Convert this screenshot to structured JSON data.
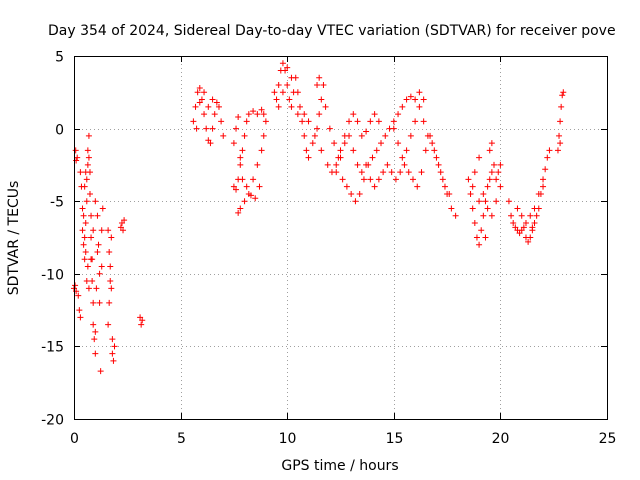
{
  "chart_data": {
    "type": "scatter",
    "title": "Day 354 of 2024, Sidereal Day-to-day VTEC variation (SDTVAR) for receiver pove",
    "xlabel": "GPS time / hours",
    "ylabel": "SDTVAR / TECUs",
    "xlim": [
      0,
      25
    ],
    "ylim": [
      -20,
      5
    ],
    "xticks": [
      "0",
      "5",
      "10",
      "15",
      "20",
      "25"
    ],
    "yticks": [
      "5",
      "0",
      "-5",
      "-10",
      "-15",
      "-20"
    ],
    "xtick_values": [
      0,
      5,
      10,
      15,
      20,
      25
    ],
    "ytick_values": [
      5,
      0,
      -5,
      -10,
      -15,
      -20
    ],
    "grid": true,
    "marker": "+",
    "color": "#ff0000",
    "series": [
      {
        "name": "SDTVAR",
        "points": [
          [
            0.0,
            -11.0
          ],
          [
            0.05,
            -10.8
          ],
          [
            0.1,
            -11.2
          ],
          [
            0.08,
            -1.5
          ],
          [
            0.1,
            -2.2
          ],
          [
            0.15,
            -2.0
          ],
          [
            0.2,
            -11.5
          ],
          [
            0.25,
            -12.5
          ],
          [
            0.3,
            -13.0
          ],
          [
            0.3,
            -3.0
          ],
          [
            0.35,
            -4.0
          ],
          [
            0.4,
            -5.5
          ],
          [
            0.4,
            -7.0
          ],
          [
            0.45,
            -8.0
          ],
          [
            0.5,
            -9.0
          ],
          [
            0.5,
            -7.5
          ],
          [
            0.55,
            -6.5
          ],
          [
            0.6,
            -5.0
          ],
          [
            0.6,
            -3.5
          ],
          [
            0.65,
            -2.5
          ],
          [
            0.65,
            -1.5
          ],
          [
            0.7,
            -0.5
          ],
          [
            0.7,
            -2.0
          ],
          [
            0.75,
            -3.0
          ],
          [
            0.75,
            -4.5
          ],
          [
            0.8,
            -6.0
          ],
          [
            0.8,
            -7.5
          ],
          [
            0.85,
            -9.0
          ],
          [
            0.85,
            -10.5
          ],
          [
            0.9,
            -12.0
          ],
          [
            0.9,
            -13.5
          ],
          [
            0.95,
            -14.5
          ],
          [
            1.0,
            -15.5
          ],
          [
            1.0,
            -14.0
          ],
          [
            1.05,
            -11.0
          ],
          [
            1.1,
            -8.5
          ],
          [
            1.1,
            -6.0
          ],
          [
            1.15,
            -8.0
          ],
          [
            1.2,
            -10.0
          ],
          [
            1.2,
            -12.0
          ],
          [
            1.25,
            -16.7
          ],
          [
            1.3,
            -9.5
          ],
          [
            1.3,
            -7.0
          ],
          [
            1.35,
            -5.5
          ],
          [
            0.5,
            -4.0
          ],
          [
            0.55,
            -3.0
          ],
          [
            0.45,
            -6.0
          ],
          [
            0.55,
            -8.5
          ],
          [
            0.6,
            -10.5
          ],
          [
            0.65,
            -9.5
          ],
          [
            0.7,
            -11.0
          ],
          [
            0.8,
            -9.0
          ],
          [
            0.9,
            -7.0
          ],
          [
            1.0,
            -5.0
          ],
          [
            1.6,
            -7.0
          ],
          [
            1.65,
            -8.5
          ],
          [
            1.7,
            -9.5
          ],
          [
            1.7,
            -10.5
          ],
          [
            1.75,
            -7.5
          ],
          [
            1.8,
            -14.5
          ],
          [
            1.8,
            -15.5
          ],
          [
            1.85,
            -16.0
          ],
          [
            1.9,
            -15.0
          ],
          [
            1.6,
            -13.5
          ],
          [
            1.65,
            -12.0
          ],
          [
            1.75,
            -11.0
          ],
          [
            2.2,
            -6.8
          ],
          [
            2.25,
            -6.5
          ],
          [
            2.3,
            -7.0
          ],
          [
            2.35,
            -6.3
          ],
          [
            3.1,
            -13.0
          ],
          [
            3.15,
            -13.5
          ],
          [
            3.2,
            -13.2
          ],
          [
            5.6,
            0.5
          ],
          [
            5.7,
            1.5
          ],
          [
            5.8,
            2.5
          ],
          [
            5.9,
            2.8
          ],
          [
            6.0,
            2.0
          ],
          [
            6.1,
            1.0
          ],
          [
            6.2,
            0.0
          ],
          [
            6.3,
            -0.8
          ],
          [
            6.4,
            -1.0
          ],
          [
            6.5,
            0.0
          ],
          [
            6.6,
            1.0
          ],
          [
            6.7,
            1.8
          ],
          [
            6.8,
            1.5
          ],
          [
            6.9,
            0.5
          ],
          [
            7.0,
            -0.5
          ],
          [
            6.5,
            2.0
          ],
          [
            6.3,
            1.5
          ],
          [
            6.1,
            2.5
          ],
          [
            5.9,
            1.8
          ],
          [
            5.75,
            0.0
          ],
          [
            7.5,
            -4.0
          ],
          [
            7.6,
            -4.2
          ],
          [
            7.7,
            -3.5
          ],
          [
            7.8,
            -2.5
          ],
          [
            7.9,
            -1.5
          ],
          [
            8.0,
            -0.5
          ],
          [
            8.1,
            0.5
          ],
          [
            8.2,
            1.0
          ],
          [
            8.4,
            1.2
          ],
          [
            8.6,
            1.0
          ],
          [
            8.8,
            1.3
          ],
          [
            8.9,
            1.0
          ],
          [
            7.5,
            -1.0
          ],
          [
            7.6,
            0.0
          ],
          [
            7.7,
            0.8
          ],
          [
            7.8,
            -2.0
          ],
          [
            7.9,
            -3.5
          ],
          [
            8.1,
            -4.0
          ],
          [
            7.7,
            -5.8
          ],
          [
            7.8,
            -5.5
          ],
          [
            8.0,
            -5.0
          ],
          [
            8.2,
            -4.5
          ],
          [
            8.4,
            -3.5
          ],
          [
            8.6,
            -2.5
          ],
          [
            8.8,
            -1.5
          ],
          [
            8.9,
            -0.5
          ],
          [
            9.0,
            0.5
          ],
          [
            8.5,
            -4.8
          ],
          [
            8.7,
            -4.0
          ],
          [
            8.3,
            -4.6
          ],
          [
            9.5,
            2.0
          ],
          [
            9.6,
            3.0
          ],
          [
            9.7,
            4.0
          ],
          [
            9.8,
            4.5
          ],
          [
            9.9,
            4.0
          ],
          [
            10.0,
            3.0
          ],
          [
            10.1,
            2.0
          ],
          [
            10.2,
            1.5
          ],
          [
            10.3,
            2.5
          ],
          [
            10.4,
            3.5
          ],
          [
            10.5,
            2.5
          ],
          [
            10.6,
            1.5
          ],
          [
            10.7,
            0.5
          ],
          [
            10.8,
            -0.5
          ],
          [
            10.9,
            -1.5
          ],
          [
            11.0,
            -2.0
          ],
          [
            11.2,
            -1.0
          ],
          [
            11.4,
            0.0
          ],
          [
            11.5,
            1.0
          ],
          [
            11.6,
            2.0
          ],
          [
            11.7,
            3.0
          ],
          [
            11.5,
            3.5
          ],
          [
            11.4,
            3.0
          ],
          [
            11.8,
            1.5
          ],
          [
            9.6,
            1.5
          ],
          [
            9.8,
            2.5
          ],
          [
            10.0,
            4.2
          ],
          [
            10.2,
            3.5
          ],
          [
            9.4,
            2.5
          ],
          [
            10.5,
            1.0
          ],
          [
            10.8,
            1.0
          ],
          [
            11.0,
            0.5
          ],
          [
            11.3,
            -0.5
          ],
          [
            11.6,
            -1.5
          ],
          [
            11.9,
            -2.5
          ],
          [
            12.1,
            -3.0
          ],
          [
            12.3,
            -2.5
          ],
          [
            12.5,
            -1.5
          ],
          [
            12.7,
            -0.5
          ],
          [
            12.9,
            0.5
          ],
          [
            13.1,
            1.0
          ],
          [
            13.3,
            0.5
          ],
          [
            13.5,
            -0.5
          ],
          [
            13.7,
            -0.2
          ],
          [
            13.9,
            0.5
          ],
          [
            14.1,
            1.0
          ],
          [
            14.3,
            0.5
          ],
          [
            12.0,
            0.0
          ],
          [
            12.2,
            -1.0
          ],
          [
            12.4,
            -2.0
          ],
          [
            12.6,
            -3.5
          ],
          [
            12.8,
            -4.0
          ],
          [
            13.0,
            -4.5
          ],
          [
            13.2,
            -5.0
          ],
          [
            13.4,
            -4.5
          ],
          [
            13.6,
            -3.5
          ],
          [
            13.8,
            -2.5
          ],
          [
            14.0,
            -2.0
          ],
          [
            14.2,
            -1.5
          ],
          [
            14.4,
            -1.0
          ],
          [
            14.6,
            -0.5
          ],
          [
            14.8,
            0.0
          ],
          [
            15.0,
            0.5
          ],
          [
            15.2,
            1.0
          ],
          [
            15.4,
            1.5
          ],
          [
            15.6,
            2.0
          ],
          [
            15.8,
            2.2
          ],
          [
            16.0,
            2.0
          ],
          [
            16.2,
            2.5
          ],
          [
            16.4,
            2.0
          ],
          [
            12.3,
            -3.0
          ],
          [
            12.5,
            -2.0
          ],
          [
            12.7,
            -1.0
          ],
          [
            12.9,
            -0.5
          ],
          [
            13.1,
            -1.5
          ],
          [
            13.3,
            -2.5
          ],
          [
            13.5,
            -3.0
          ],
          [
            13.7,
            -2.5
          ],
          [
            13.9,
            -3.5
          ],
          [
            14.1,
            -4.0
          ],
          [
            14.3,
            -3.5
          ],
          [
            14.5,
            -3.0
          ],
          [
            14.7,
            -2.5
          ],
          [
            14.9,
            -3.0
          ],
          [
            15.1,
            -3.5
          ],
          [
            15.3,
            -3.0
          ],
          [
            15.5,
            -2.5
          ],
          [
            15.7,
            -3.0
          ],
          [
            15.9,
            -3.5
          ],
          [
            16.1,
            -4.0
          ],
          [
            16.3,
            -3.0
          ],
          [
            16.5,
            -1.5
          ],
          [
            16.7,
            -0.5
          ],
          [
            16.9,
            -1.5
          ],
          [
            17.1,
            -2.5
          ],
          [
            17.3,
            -3.5
          ],
          [
            17.5,
            -4.5
          ],
          [
            17.7,
            -5.5
          ],
          [
            17.9,
            -6.0
          ],
          [
            15.0,
            0.0
          ],
          [
            15.2,
            -1.0
          ],
          [
            15.4,
            -2.0
          ],
          [
            15.6,
            -1.5
          ],
          [
            15.8,
            -0.5
          ],
          [
            16.0,
            0.5
          ],
          [
            16.2,
            1.5
          ],
          [
            16.4,
            0.5
          ],
          [
            16.6,
            -0.5
          ],
          [
            16.8,
            -1.0
          ],
          [
            17.0,
            -2.0
          ],
          [
            17.2,
            -3.0
          ],
          [
            17.4,
            -4.0
          ],
          [
            17.6,
            -4.5
          ],
          [
            18.5,
            -3.5
          ],
          [
            18.6,
            -4.5
          ],
          [
            18.7,
            -5.5
          ],
          [
            18.8,
            -6.5
          ],
          [
            18.9,
            -7.5
          ],
          [
            19.0,
            -8.0
          ],
          [
            19.1,
            -7.0
          ],
          [
            19.2,
            -6.0
          ],
          [
            19.3,
            -5.0
          ],
          [
            19.4,
            -4.0
          ],
          [
            19.5,
            -3.5
          ],
          [
            19.6,
            -3.0
          ],
          [
            19.7,
            -2.5
          ],
          [
            19.8,
            -3.5
          ],
          [
            19.9,
            -3.0
          ],
          [
            20.0,
            -2.5
          ],
          [
            19.0,
            -2.0
          ],
          [
            18.8,
            -3.0
          ],
          [
            19.2,
            -4.5
          ],
          [
            19.4,
            -5.5
          ],
          [
            19.6,
            -6.0
          ],
          [
            19.8,
            -5.0
          ],
          [
            18.7,
            -4.0
          ],
          [
            19.3,
            -7.5
          ],
          [
            19.5,
            -1.5
          ],
          [
            19.6,
            -1.0
          ],
          [
            20.0,
            -4.0
          ],
          [
            19.0,
            -5.0
          ],
          [
            20.4,
            -5.0
          ],
          [
            20.5,
            -6.0
          ],
          [
            20.6,
            -6.5
          ],
          [
            20.7,
            -6.8
          ],
          [
            20.8,
            -7.0
          ],
          [
            20.9,
            -7.2
          ],
          [
            21.0,
            -7.0
          ],
          [
            21.1,
            -6.8
          ],
          [
            21.2,
            -7.5
          ],
          [
            21.3,
            -7.8
          ],
          [
            21.4,
            -7.5
          ],
          [
            21.5,
            -7.0
          ],
          [
            21.6,
            -6.5
          ],
          [
            21.7,
            -6.0
          ],
          [
            21.8,
            -5.5
          ],
          [
            21.9,
            -4.5
          ],
          [
            22.0,
            -3.5
          ],
          [
            22.1,
            -2.8
          ],
          [
            22.2,
            -2.0
          ],
          [
            22.3,
            -1.5
          ],
          [
            21.0,
            -6.0
          ],
          [
            21.2,
            -6.5
          ],
          [
            21.4,
            -6.0
          ],
          [
            21.6,
            -5.5
          ],
          [
            21.8,
            -4.5
          ],
          [
            22.0,
            -4.0
          ],
          [
            20.8,
            -5.5
          ],
          [
            21.5,
            -6.8
          ],
          [
            22.7,
            -1.5
          ],
          [
            22.75,
            -0.5
          ],
          [
            22.8,
            0.5
          ],
          [
            22.85,
            1.5
          ],
          [
            22.9,
            2.3
          ],
          [
            22.95,
            2.5
          ],
          [
            22.8,
            -1.0
          ]
        ]
      }
    ]
  }
}
